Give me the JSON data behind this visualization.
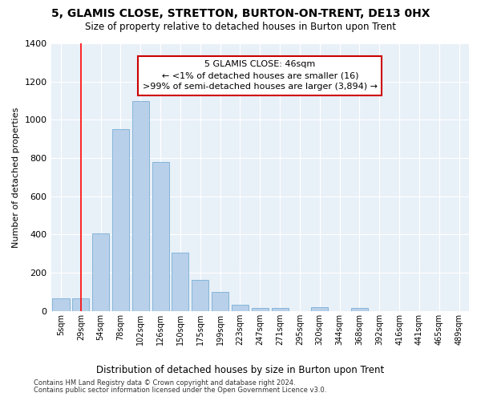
{
  "title": "5, GLAMIS CLOSE, STRETTON, BURTON-ON-TRENT, DE13 0HX",
  "subtitle": "Size of property relative to detached houses in Burton upon Trent",
  "xlabel": "Distribution of detached houses by size in Burton upon Trent",
  "ylabel": "Number of detached properties",
  "footnote1": "Contains HM Land Registry data © Crown copyright and database right 2024.",
  "footnote2": "Contains public sector information licensed under the Open Government Licence v3.0.",
  "annotation_line1": "5 GLAMIS CLOSE: 46sqm",
  "annotation_line2": "← <1% of detached houses are smaller (16)",
  "annotation_line3": ">99% of semi-detached houses are larger (3,894) →",
  "bar_color": "#b8d0ea",
  "bar_edge_color": "#7aafd4",
  "red_line_x": 1,
  "categories": [
    "5sqm",
    "29sqm",
    "54sqm",
    "78sqm",
    "102sqm",
    "126sqm",
    "150sqm",
    "175sqm",
    "199sqm",
    "223sqm",
    "247sqm",
    "271sqm",
    "295sqm",
    "320sqm",
    "344sqm",
    "368sqm",
    "392sqm",
    "416sqm",
    "441sqm",
    "465sqm",
    "489sqm"
  ],
  "values": [
    65,
    65,
    405,
    950,
    1100,
    780,
    305,
    165,
    100,
    35,
    15,
    15,
    0,
    20,
    0,
    15,
    0,
    0,
    0,
    0,
    0
  ],
  "ylim": [
    0,
    1400
  ],
  "yticks": [
    0,
    200,
    400,
    600,
    800,
    1000,
    1200,
    1400
  ],
  "ax_bg_color": "#e8f0f8",
  "figsize": [
    6.0,
    5.0
  ],
  "dpi": 100
}
